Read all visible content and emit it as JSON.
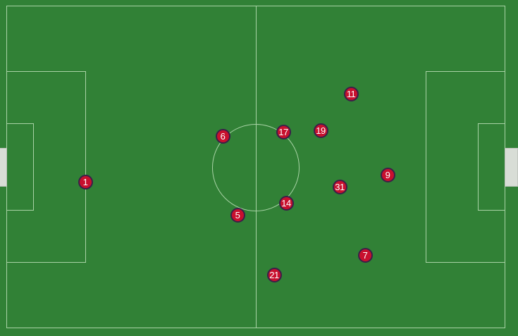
{
  "players": [
    {
      "number": "1"
    },
    {
      "number": "6"
    },
    {
      "number": "5"
    },
    {
      "number": "17"
    },
    {
      "number": "14"
    },
    {
      "number": "21"
    },
    {
      "number": "19"
    },
    {
      "number": "11"
    },
    {
      "number": "31"
    },
    {
      "number": "9"
    },
    {
      "number": "7"
    }
  ],
  "colors": {
    "pitch": "#318136",
    "lines": "#a9d3a6",
    "player_fill": "#c8102e",
    "player_border": "#3b1f49"
  }
}
